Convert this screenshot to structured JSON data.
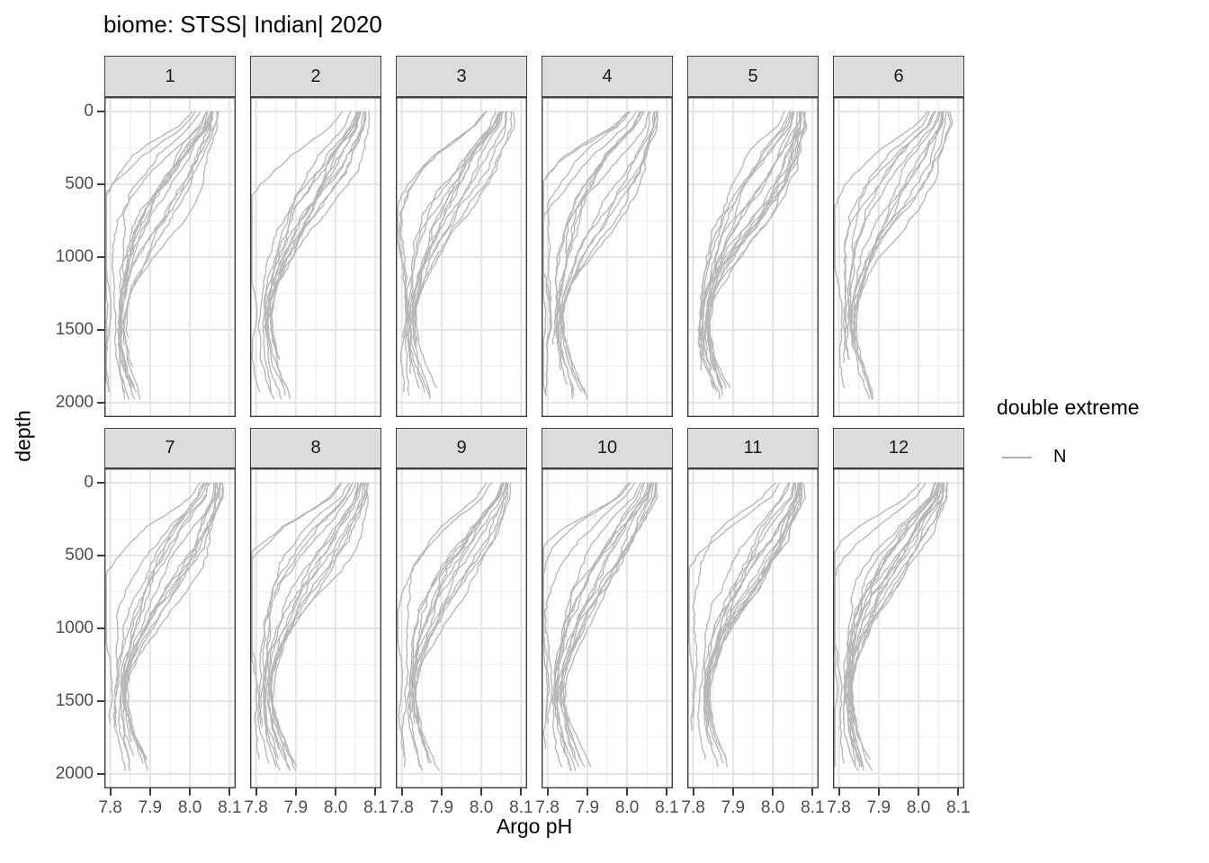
{
  "title": "biome: STSS| Indian| 2020",
  "axes": {
    "x": {
      "title": "Argo pH",
      "tick_labels": [
        "7.8",
        "7.9",
        "8.0",
        "8.1"
      ],
      "tick_values": [
        7.8,
        7.9,
        8.0,
        8.1
      ],
      "limits": [
        7.8,
        8.1
      ],
      "minor_ticks": [
        7.85,
        7.95,
        8.05
      ]
    },
    "y": {
      "title": "depth",
      "tick_labels": [
        "0",
        "500",
        "1000",
        "1500",
        "2000"
      ],
      "tick_values": [
        0,
        500,
        1000,
        1500,
        2000
      ],
      "limits": [
        0,
        2000
      ],
      "reversed": true,
      "minor_ticks": [
        250,
        750,
        1250,
        1750
      ]
    }
  },
  "legend": {
    "title": "double extreme",
    "entries": [
      {
        "label": "N",
        "color": "#b3b3b3"
      }
    ]
  },
  "facets": [
    {
      "label": "1",
      "seed": 1097,
      "n_profiles": 16
    },
    {
      "label": "2",
      "seed": 1194,
      "n_profiles": 14
    },
    {
      "label": "3",
      "seed": 1291,
      "n_profiles": 15
    },
    {
      "label": "4",
      "seed": 1388,
      "n_profiles": 16
    },
    {
      "label": "5",
      "seed": 1485,
      "n_profiles": 17
    },
    {
      "label": "6",
      "seed": 1582,
      "n_profiles": 14
    },
    {
      "label": "7",
      "seed": 1679,
      "n_profiles": 15
    },
    {
      "label": "8",
      "seed": 1776,
      "n_profiles": 15
    },
    {
      "label": "9",
      "seed": 1873,
      "n_profiles": 14
    },
    {
      "label": "10",
      "seed": 1970,
      "n_profiles": 16
    },
    {
      "label": "11",
      "seed": 2067,
      "n_profiles": 17
    },
    {
      "label": "12",
      "seed": 2164,
      "n_profiles": 18
    }
  ],
  "colors": {
    "profile_line": "#b7b7b7",
    "panel_border": "#3d3d3d",
    "strip_fill": "#dcdcdc",
    "strip_border": "#424242",
    "grid_major": "#e4e4e4",
    "grid_minor": "#f1f1f1",
    "axis_text": "#4d4d4d",
    "tick_mark": "#3d3d3d"
  },
  "chart_data": {
    "type": "line",
    "title": "biome: STSS| Indian| 2020",
    "xlabel": "Argo pH",
    "ylabel": "depth",
    "xlim": [
      7.8,
      8.1
    ],
    "ylim": [
      0,
      2000
    ],
    "y_reversed": true,
    "grid": "major and minor gridlines on, white panel background",
    "legend_position": "right",
    "legend_title": "double extreme",
    "legend_entries": [
      "N"
    ],
    "facet_labels": [
      "1",
      "2",
      "3",
      "4",
      "5",
      "6",
      "7",
      "8",
      "9",
      "10",
      "11",
      "12"
    ],
    "facet_layout": {
      "rows": 2,
      "cols": 6
    },
    "n_profiles_per_facet": [
      16,
      14,
      15,
      16,
      17,
      14,
      15,
      15,
      14,
      16,
      17,
      18
    ],
    "description": "Each facet (month 1-12) shows ~14-18 gray Argo float pH depth profiles (double extreme = N). Profiles start near pH 8.0-8.09 at the surface, decrease with depth to a minimum near 7.81-7.84 at 1200-1500 m; roughly half terminate at 1500-1700 m, the rest continue to ~2000 m drifting back right to ~7.85-7.90.",
    "mean_profile": {
      "depth": [
        0,
        100,
        200,
        300,
        400,
        500,
        600,
        700,
        800,
        900,
        1000,
        1100,
        1200,
        1300,
        1400,
        1500,
        1600,
        1700,
        1800,
        1900,
        2000
      ],
      "ph": [
        8.055,
        8.045,
        8.02,
        7.995,
        7.975,
        7.952,
        7.93,
        7.91,
        7.892,
        7.876,
        7.862,
        7.85,
        7.84,
        7.832,
        7.828,
        7.827,
        7.83,
        7.836,
        7.846,
        7.858,
        7.868
      ]
    },
    "spread_profile": {
      "depth": [
        0,
        100,
        200,
        300,
        400,
        500,
        600,
        700,
        800,
        900,
        1000,
        1100,
        1200,
        1300,
        1400,
        1500,
        1600,
        1700,
        1800,
        1900,
        2000
      ],
      "sd": [
        0.022,
        0.032,
        0.046,
        0.06,
        0.068,
        0.072,
        0.072,
        0.068,
        0.06,
        0.05,
        0.04,
        0.03,
        0.022,
        0.016,
        0.013,
        0.014,
        0.018,
        0.022,
        0.026,
        0.03,
        0.034
      ]
    }
  }
}
